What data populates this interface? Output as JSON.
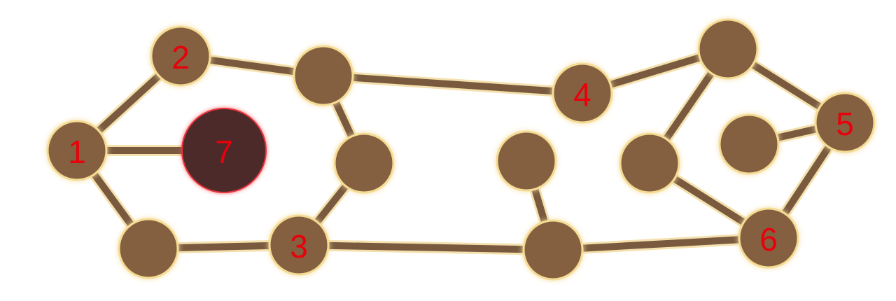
{
  "board": {
    "nodes": [
      {
        "id": "n1",
        "label": "1",
        "state": "normal"
      },
      {
        "id": "n2",
        "label": "2",
        "state": "normal"
      },
      {
        "id": "n3",
        "label": "3",
        "state": "normal"
      },
      {
        "id": "n4",
        "label": "4",
        "state": "normal"
      },
      {
        "id": "n5",
        "label": "5",
        "state": "normal"
      },
      {
        "id": "n6",
        "label": "6",
        "state": "normal"
      },
      {
        "id": "n7",
        "label": "7",
        "state": "selected"
      },
      {
        "id": "a",
        "label": "",
        "state": "normal"
      },
      {
        "id": "b",
        "label": "",
        "state": "normal"
      },
      {
        "id": "c",
        "label": "",
        "state": "normal"
      },
      {
        "id": "d",
        "label": "",
        "state": "normal"
      },
      {
        "id": "e",
        "label": "",
        "state": "normal"
      },
      {
        "id": "f",
        "label": "",
        "state": "normal"
      },
      {
        "id": "g",
        "label": "",
        "state": "normal"
      },
      {
        "id": "h",
        "label": "",
        "state": "normal"
      }
    ],
    "edges": [
      [
        "n1",
        "n2"
      ],
      [
        "n2",
        "a"
      ],
      [
        "a",
        "n4"
      ],
      [
        "a",
        "b"
      ],
      [
        "b",
        "n3"
      ],
      [
        "n1",
        "n7"
      ],
      [
        "n1",
        "c"
      ],
      [
        "c",
        "n3"
      ],
      [
        "n3",
        "d"
      ],
      [
        "d",
        "e"
      ],
      [
        "d",
        "n6"
      ],
      [
        "n4",
        "f"
      ],
      [
        "f",
        "g"
      ],
      [
        "f",
        "n5"
      ],
      [
        "n5",
        "h"
      ],
      [
        "n5",
        "n6"
      ],
      [
        "g",
        "n6"
      ]
    ],
    "colors": {
      "node_fill": "#84613f",
      "node_outline": "#f5dc94",
      "edge": "#7a5a3f",
      "selected_fill": "#4e2c2c",
      "selected_outline": "#e8323c",
      "label": "#e8000b"
    }
  }
}
